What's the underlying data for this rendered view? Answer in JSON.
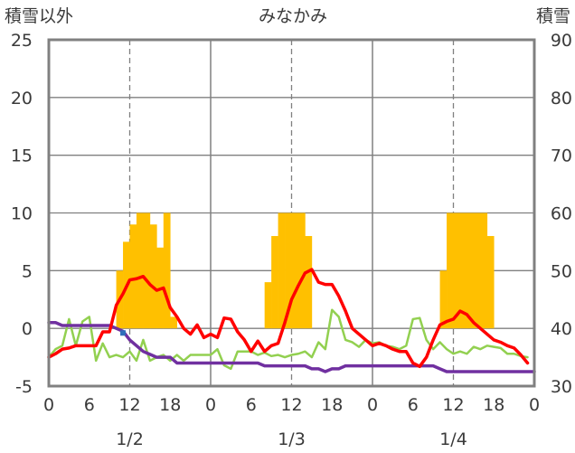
{
  "chart_data": {
    "type": "bar+line",
    "title": "みなかみ",
    "y_left_label": "積雪以外",
    "y_right_label": "積雪",
    "y_left_range": [
      -5,
      25
    ],
    "y_left_ticks": [
      "25",
      "20",
      "15",
      "10",
      "5",
      "0",
      "-5"
    ],
    "y_right_range": [
      30,
      90
    ],
    "y_right_ticks": [
      "90",
      "80",
      "70",
      "60",
      "50",
      "40",
      "30"
    ],
    "x_range_hours": [
      0,
      72
    ],
    "x_tick_labels": [
      "0",
      "6",
      "12",
      "18",
      "0",
      "6",
      "12",
      "18",
      "0",
      "6",
      "12",
      "18",
      "0"
    ],
    "date_labels": [
      "1/2",
      "1/3",
      "1/4"
    ],
    "grid": true,
    "colors": {
      "bars": "#FFC000",
      "temperature": "#FF0000",
      "green_line": "#92D050",
      "snow_depth": "#7030A0",
      "marker": "#2F6EBA",
      "frame": "#808080",
      "grid": "#808080"
    },
    "bars": {
      "values": [
        0,
        0,
        0,
        0,
        0,
        0,
        0,
        0,
        0,
        0,
        5,
        7.5,
        9,
        10,
        10,
        9,
        7,
        10,
        1,
        0,
        0,
        0,
        0,
        0,
        0,
        0,
        0,
        0,
        0,
        0,
        0,
        0,
        4,
        8,
        10,
        10,
        10,
        10,
        8,
        0,
        0,
        0,
        0,
        0,
        0,
        0,
        0,
        0,
        0,
        0,
        0,
        0,
        0,
        0,
        0,
        0,
        0,
        0,
        5,
        10,
        10,
        10,
        10,
        10,
        10,
        8,
        0,
        0,
        0,
        0,
        0,
        0
      ]
    },
    "temperature_series": {
      "values": [
        -2.5,
        -2.2,
        -1.8,
        -1.7,
        -1.5,
        -1.5,
        -1.5,
        -1.5,
        -0.3,
        -0.3,
        2,
        3,
        4.2,
        4.3,
        4.5,
        3.8,
        3.3,
        3.5,
        1.8,
        1,
        0,
        -0.5,
        0.3,
        -0.8,
        -0.5,
        -0.8,
        0.9,
        0.8,
        -0.3,
        -1,
        -2,
        -1.1,
        -2,
        -1.5,
        -1.3,
        0.5,
        2.5,
        3.7,
        4.8,
        5.1,
        4,
        3.8,
        3.8,
        2.8,
        1.5,
        0,
        -0.5,
        -1,
        -1.5,
        -1.3,
        -1.5,
        -1.8,
        -2,
        -2,
        -3,
        -3.3,
        -2.5,
        -1,
        0.3,
        0.6,
        0.8,
        1.5,
        1.2,
        0.5,
        0,
        -0.5,
        -1,
        -1.2,
        -1.5,
        -1.7,
        -2.3,
        -3
      ]
    },
    "green_series": {
      "values": [
        -2.5,
        -1.8,
        -1.5,
        0.8,
        -1.5,
        0.6,
        1,
        -2.8,
        -1.3,
        -2.5,
        -2.3,
        -2.5,
        -2,
        -2.8,
        -1,
        -2.8,
        -2.5,
        -2.3,
        -2.8,
        -2.3,
        -2.8,
        -2.3,
        -2.3,
        -2.3,
        -2.3,
        -1.8,
        -3.2,
        -3.5,
        -2,
        -2,
        -2,
        -2.3,
        -2.1,
        -2.4,
        -2.3,
        -2.5,
        -2.3,
        -2.2,
        -2,
        -2.5,
        -1.2,
        -1.8,
        1.6,
        1,
        -1,
        -1.2,
        -1.6,
        -1,
        -1.3,
        -1.2,
        -1.5,
        -1.6,
        -1.8,
        -1.5,
        0.8,
        0.9,
        -1,
        -1.8,
        -1.2,
        -1.8,
        -2.2,
        -2,
        -2.2,
        -1.6,
        -1.8,
        -1.5,
        -1.6,
        -1.7,
        -2.2,
        -2.2,
        -2.4,
        -2.5
      ]
    },
    "snow_depth_series": {
      "values": [
        41,
        41,
        40.5,
        40.5,
        40.5,
        40.5,
        40.5,
        40.5,
        40.5,
        40.5,
        40,
        39.5,
        38,
        37,
        36,
        35.5,
        35,
        35,
        35,
        34,
        34,
        34,
        34,
        34,
        34,
        34,
        34,
        34,
        34,
        34,
        34,
        34,
        33.5,
        33.5,
        33.5,
        33.5,
        33.5,
        33.5,
        33.5,
        33,
        33,
        32.5,
        33,
        33,
        33.5,
        33.5,
        33.5,
        33.5,
        33.5,
        33.5,
        33.5,
        33.5,
        33.5,
        33.5,
        33.5,
        33.5,
        33.5,
        33.5,
        33,
        32.5,
        32.5,
        32.5,
        32.5,
        32.5,
        32.5,
        32.5,
        32.5,
        32.5,
        32.5,
        32.5,
        32.5,
        32.5,
        32.5
      ]
    },
    "marker_point": {
      "x": 11,
      "y": -0.4
    }
  }
}
